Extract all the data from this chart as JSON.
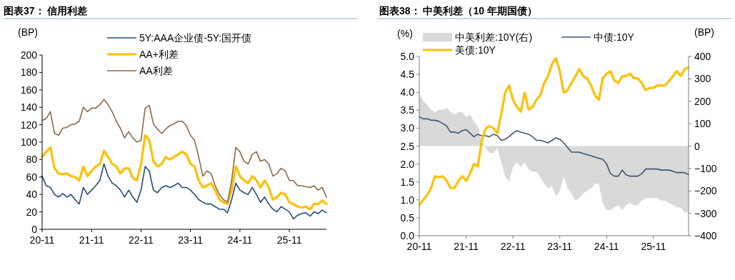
{
  "chart_data": [
    {
      "type": "line",
      "title": "图表37： 信用利差",
      "ylabel": "(BP)",
      "categories": [
        "20-11",
        null,
        null,
        null,
        null,
        null,
        null,
        null,
        null,
        null,
        null,
        null,
        "21-11",
        null,
        null,
        null,
        null,
        null,
        null,
        null,
        null,
        null,
        null,
        null,
        "22-11",
        null,
        null,
        null,
        null,
        null,
        null,
        null,
        null,
        null,
        null,
        null,
        "23-11",
        null,
        null,
        null,
        null,
        null,
        null,
        null,
        null,
        null,
        null,
        null,
        "24-11",
        null,
        null,
        null,
        null,
        null,
        null,
        null,
        null,
        null,
        null,
        null,
        "25-11",
        null,
        null,
        null,
        null,
        null,
        null,
        null,
        null,
        null
      ],
      "series": [
        {
          "name": "5Y:AAA企业债-5Y:国开债",
          "color": "#234a7d",
          "values": [
            61,
            50,
            48,
            40,
            37,
            41,
            37,
            40,
            34,
            29,
            48,
            40,
            45,
            50,
            56,
            75,
            61,
            53,
            50,
            45,
            37,
            45,
            37,
            31,
            45,
            72,
            67,
            45,
            42,
            48,
            50,
            48,
            50,
            53,
            48,
            48,
            45,
            40,
            34,
            31,
            29,
            29,
            26,
            23,
            23,
            19,
            34,
            53,
            45,
            42,
            40,
            48,
            40,
            31,
            37,
            29,
            23,
            20,
            26,
            23,
            20,
            12,
            16,
            18,
            19,
            15,
            20,
            18,
            22,
            19
          ]
        },
        {
          "name": "AA+利差",
          "color": "#ffc000",
          "values": [
            83,
            89,
            94,
            70,
            64,
            63,
            64,
            61,
            60,
            56,
            72,
            61,
            67,
            72,
            75,
            90,
            83,
            75,
            72,
            64,
            70,
            70,
            59,
            56,
            75,
            108,
            102,
            78,
            72,
            75,
            83,
            80,
            83,
            86,
            89,
            86,
            75,
            72,
            56,
            48,
            50,
            53,
            45,
            34,
            31,
            29,
            45,
            72,
            61,
            56,
            53,
            61,
            56,
            48,
            56,
            48,
            34,
            37,
            42,
            40,
            31,
            29,
            26,
            25,
            26,
            23,
            29,
            29,
            33,
            29
          ]
        },
        {
          "name": "AA利差",
          "color": "#8c6a48",
          "values": [
            125,
            127,
            135,
            110,
            108,
            116,
            117,
            120,
            121,
            124,
            140,
            135,
            139,
            139,
            143,
            149,
            143,
            135,
            124,
            116,
            105,
            112,
            105,
            100,
            102,
            139,
            142,
            121,
            115,
            110,
            115,
            119,
            121,
            124,
            124,
            119,
            108,
            102,
            83,
            61,
            67,
            64,
            50,
            40,
            34,
            31,
            56,
            94,
            89,
            78,
            75,
            86,
            89,
            78,
            80,
            75,
            61,
            64,
            70,
            67,
            56,
            56,
            50,
            50,
            49,
            48,
            50,
            45,
            48,
            37
          ]
        }
      ],
      "ylim": [
        0,
        200
      ],
      "yticks": [
        0,
        20,
        40,
        60,
        80,
        100,
        120,
        140,
        160,
        180,
        200
      ],
      "legend": "top"
    },
    {
      "type": "line",
      "title": "图表38： 中美利差（10 年期国债）",
      "ylabel": "(%)",
      "y2label": "(BP)",
      "categories": [
        "20-11",
        null,
        null,
        null,
        null,
        null,
        null,
        null,
        null,
        null,
        null,
        null,
        "21-11",
        null,
        null,
        null,
        null,
        null,
        null,
        null,
        null,
        null,
        null,
        null,
        "22-11",
        null,
        null,
        null,
        null,
        null,
        null,
        null,
        null,
        null,
        null,
        null,
        "23-11",
        null,
        null,
        null,
        null,
        null,
        null,
        null,
        null,
        null,
        null,
        null,
        "24-11",
        null,
        null,
        null,
        null,
        null,
        null,
        null,
        null,
        null,
        null,
        null,
        "25-11",
        null,
        null,
        null,
        null,
        null,
        null,
        null,
        null,
        null
      ],
      "series": [
        {
          "name": "中美利差:10Y(右)",
          "type": "area",
          "axis": "y2",
          "color": "#d9d9d9",
          "values": [
            230,
            204,
            183,
            162,
            151,
            162,
            162,
            172,
            151,
            140,
            151,
            151,
            130,
            140,
            109,
            87,
            23,
            -9,
            -30,
            -30,
            -9,
            -72,
            -136,
            -157,
            -94,
            -72,
            -94,
            -72,
            -104,
            -115,
            -115,
            -136,
            -168,
            -189,
            -179,
            -225,
            -200,
            -136,
            -189,
            -211,
            -243,
            -232,
            -211,
            -200,
            -189,
            -168,
            -168,
            -253,
            -285,
            -285,
            -274,
            -264,
            -285,
            -264,
            -253,
            -264,
            -264,
            -243,
            -232,
            -232,
            -232,
            -232,
            -243,
            -243,
            -253,
            -264,
            -274,
            -274,
            -296,
            -296
          ]
        },
        {
          "name": "中债:10Y",
          "color": "#44546a",
          "values": [
            3.32,
            3.26,
            3.26,
            3.22,
            3.22,
            3.19,
            3.13,
            3.06,
            2.89,
            2.89,
            2.86,
            2.93,
            2.96,
            2.86,
            2.76,
            2.83,
            2.79,
            2.79,
            2.76,
            2.83,
            2.79,
            2.66,
            2.69,
            2.76,
            2.86,
            2.93,
            2.89,
            2.86,
            2.83,
            2.76,
            2.66,
            2.66,
            2.63,
            2.59,
            2.66,
            2.73,
            2.69,
            2.59,
            2.46,
            2.33,
            2.33,
            2.33,
            2.29,
            2.26,
            2.23,
            2.19,
            2.16,
            2.13,
            2.0,
            1.73,
            1.66,
            1.66,
            1.83,
            1.7,
            1.66,
            1.66,
            1.66,
            1.73,
            1.86,
            1.86,
            1.86,
            1.86,
            1.83,
            1.83,
            1.83,
            1.8,
            1.76,
            1.76,
            1.76,
            1.7
          ]
        },
        {
          "name": "美债:10Y",
          "color": "#ffc000",
          "values": [
            0.86,
            1.0,
            1.13,
            1.33,
            1.66,
            1.63,
            1.66,
            1.53,
            1.33,
            1.33,
            1.53,
            1.66,
            1.53,
            1.73,
            2.0,
            1.93,
            2.66,
            2.99,
            3.06,
            2.99,
            2.86,
            3.39,
            3.99,
            4.19,
            3.79,
            3.59,
            3.46,
            3.99,
            3.52,
            3.59,
            3.79,
            3.92,
            4.26,
            4.45,
            4.79,
            4.95,
            4.59,
            3.99,
            4.06,
            4.26,
            4.45,
            4.65,
            4.45,
            4.39,
            4.19,
            3.92,
            3.79,
            4.39,
            4.52,
            4.59,
            4.32,
            4.26,
            4.45,
            4.45,
            4.52,
            4.39,
            4.39,
            4.26,
            4.06,
            4.12,
            4.12,
            4.19,
            4.19,
            4.19,
            4.32,
            4.45,
            4.59,
            4.45,
            4.65,
            4.69
          ]
        }
      ],
      "ylim": [
        0,
        5
      ],
      "yticks": [
        {
          "value": 0,
          "label": "0.0"
        },
        {
          "value": 0.5,
          "label": "0.5"
        },
        {
          "value": 1,
          "label": "1.0"
        },
        {
          "value": 1.5,
          "label": "1.5"
        },
        {
          "value": 2,
          "label": "2.0"
        },
        {
          "value": 2.5,
          "label": "2.5"
        },
        {
          "value": 3,
          "label": "3.0"
        },
        {
          "value": 3.5,
          "label": "3.5"
        },
        {
          "value": 4,
          "label": "4.0"
        },
        {
          "value": 4.5,
          "label": "4.5"
        },
        {
          "value": 5,
          "label": "5.0"
        }
      ],
      "y2lim": [
        -400,
        400
      ],
      "y2ticks": [
        -400,
        -300,
        -200,
        -100,
        0,
        100,
        200,
        300,
        400
      ],
      "legend": "top"
    }
  ]
}
